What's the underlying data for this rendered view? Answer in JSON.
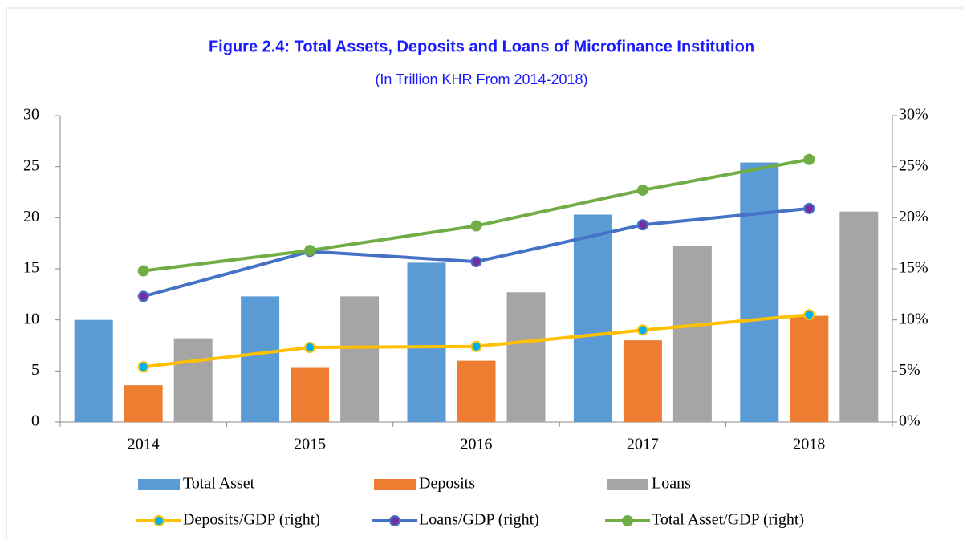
{
  "chart_data": {
    "type": "bar",
    "title": "Figure 2.4: Total Assets, Deposits and Loans of Microfinance Institution",
    "subtitle": "(In Trillion KHR From 2014-2018)",
    "categories": [
      "2014",
      "2015",
      "2016",
      "2017",
      "2018"
    ],
    "ylim": [
      0,
      30
    ],
    "yticks": [
      0,
      5,
      10,
      15,
      20,
      25,
      30
    ],
    "y2lim": [
      0,
      30
    ],
    "y2ticks": [
      {
        "value": 0,
        "label": "0%"
      },
      {
        "value": 5,
        "label": "5%"
      },
      {
        "value": 10,
        "label": "10%"
      },
      {
        "value": 15,
        "label": "15%"
      },
      {
        "value": 20,
        "label": "20%"
      },
      {
        "value": 25,
        "label": "25%"
      },
      {
        "value": 30,
        "label": "30%"
      }
    ],
    "grid": false,
    "legend": "bottom",
    "series": [
      {
        "name": "Total Asset",
        "type": "bar",
        "color": "#5b9bd5",
        "values": [
          10.0,
          12.3,
          15.6,
          20.3,
          25.4
        ]
      },
      {
        "name": "Deposits",
        "type": "bar",
        "color": "#ed7d31",
        "values": [
          3.6,
          5.3,
          6.0,
          8.0,
          10.4
        ]
      },
      {
        "name": "Loans",
        "type": "bar",
        "color": "#a5a5a5",
        "values": [
          8.2,
          12.3,
          12.7,
          17.2,
          20.6
        ]
      },
      {
        "name": "Deposits/GDP (right)",
        "type": "line",
        "axis": "y2",
        "color": "#ffc000",
        "marker_color": "#00b0f0",
        "values": [
          5.4,
          7.3,
          7.4,
          9.0,
          10.5
        ]
      },
      {
        "name": "Loans/GDP (right)",
        "type": "line",
        "axis": "y2",
        "color": "#4472c4",
        "marker_color": "#7030a0",
        "values": [
          12.3,
          16.7,
          15.7,
          19.3,
          20.9
        ]
      },
      {
        "name": "Total Asset/GDP (right)",
        "type": "line",
        "axis": "y2",
        "color": "#70ad47",
        "marker_color": "#70ad47",
        "values": [
          14.8,
          16.8,
          19.2,
          22.7,
          25.7
        ]
      }
    ]
  }
}
